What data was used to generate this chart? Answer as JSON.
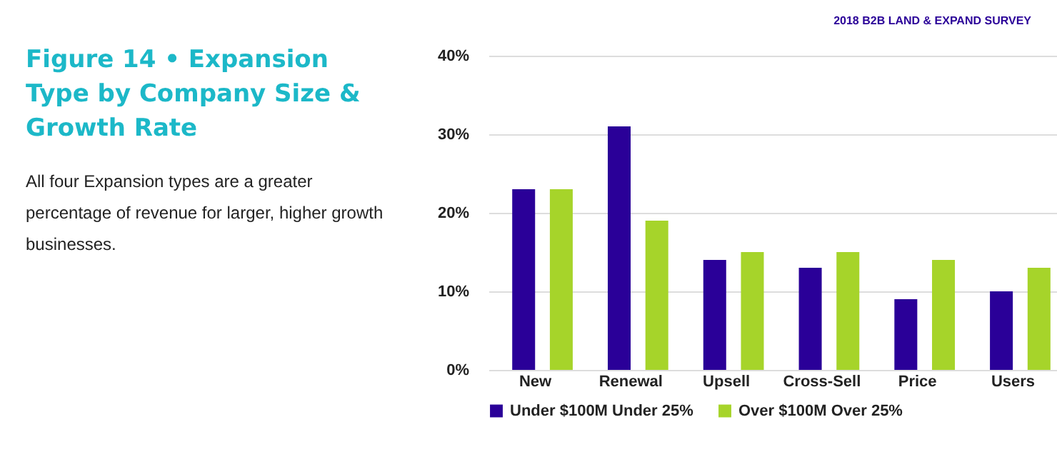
{
  "chart_data": {
    "type": "bar",
    "title": "Figure 14 • Expansion Type by Company Size & Growth Rate",
    "subtitle": "All four Expansion types are a greater percentage of revenue for larger, higher growth businesses.",
    "annotations": [
      "2018 B2B LAND & EXPAND SURVEY"
    ],
    "categories": [
      "New",
      "Renewal",
      "Upsell",
      "Cross-Sell",
      "Price",
      "Users"
    ],
    "series": [
      {
        "name": "Under $100M Under 25%",
        "color": "#2a0098",
        "values": [
          23,
          31,
          14,
          13,
          9,
          10
        ]
      },
      {
        "name": "Over $100M Over 25%",
        "color": "#a6d42a",
        "values": [
          23,
          19,
          15,
          15,
          14,
          13
        ]
      }
    ],
    "ylim": [
      0,
      40
    ],
    "yticks": [
      {
        "value": 0,
        "label": "0%"
      },
      {
        "value": 10,
        "label": "10%"
      },
      {
        "value": 20,
        "label": "20%"
      },
      {
        "value": 30,
        "label": "30%"
      },
      {
        "value": 40,
        "label": "40%"
      }
    ],
    "grid": "y",
    "legend": "bottom"
  }
}
